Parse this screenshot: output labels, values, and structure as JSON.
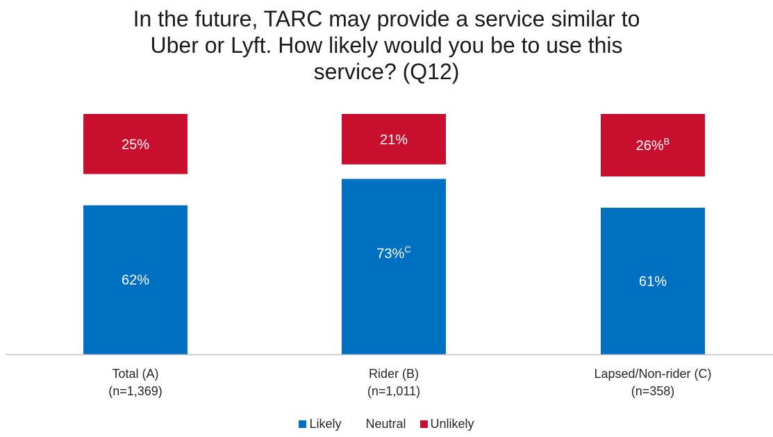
{
  "chart_data": {
    "type": "bar",
    "stacked": true,
    "title_lines": [
      "In the future, TARC may provide a service similar to",
      "Uber or Lyft. How likely would you be to use this",
      "service? (Q12)"
    ],
    "categories": [
      {
        "line1": "Total (A)",
        "line2": "(n=1,369)"
      },
      {
        "line1": "Rider (B)",
        "line2": "(n=1,011)"
      },
      {
        "line1": "Lapsed/Non-rider (C)",
        "line2": "(n=358)"
      }
    ],
    "series": [
      {
        "name": "Likely",
        "color": "#0070C0",
        "values": [
          62,
          73,
          61
        ],
        "labels": [
          "62%",
          "73%",
          "61%"
        ],
        "superscripts": [
          "",
          "C",
          ""
        ]
      },
      {
        "name": "Neutral",
        "color": "#ffffff",
        "values": [
          13,
          6,
          13
        ],
        "labels": [
          "",
          "",
          ""
        ],
        "superscripts": [
          "",
          "",
          ""
        ]
      },
      {
        "name": "Unlikely",
        "color": "#C8102E",
        "values": [
          25,
          21,
          26
        ],
        "labels": [
          "25%",
          "21%",
          "26%"
        ],
        "superscripts": [
          "",
          "",
          "B"
        ]
      }
    ],
    "ylim": [
      0,
      100
    ],
    "legend_position": "bottom"
  }
}
